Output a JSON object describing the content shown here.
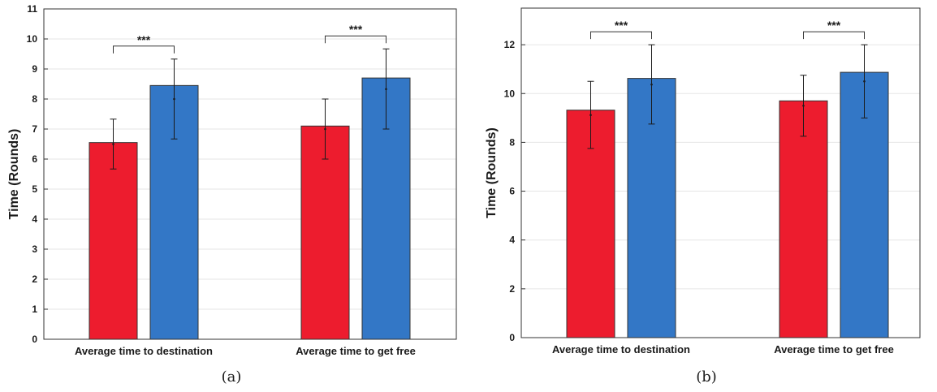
{
  "chart_data": [
    {
      "type": "bar",
      "sublabel": "(a)",
      "ylabel": "Time (Rounds)",
      "ylim": [
        0,
        11
      ],
      "yticks": [
        0,
        1,
        2,
        3,
        4,
        5,
        6,
        7,
        8,
        9,
        10,
        11
      ],
      "grid": true,
      "categories": [
        "Average time to destination",
        "Average time to get free"
      ],
      "series": [
        {
          "color": "#ED1C2E",
          "values": [
            6.55,
            7.1
          ],
          "means": [
            6.5,
            7.0
          ],
          "err_low": [
            5.67,
            6.0
          ],
          "err_high": [
            7.33,
            8.0
          ]
        },
        {
          "color": "#3377C6",
          "values": [
            8.45,
            8.7
          ],
          "means": [
            8.0,
            8.33
          ],
          "err_low": [
            6.67,
            7.0
          ],
          "err_high": [
            9.33,
            9.67
          ]
        }
      ],
      "significance": [
        "***",
        "***"
      ]
    },
    {
      "type": "bar",
      "sublabel": "(b)",
      "ylabel": "Time (Rounds)",
      "ylim": [
        0,
        13.5
      ],
      "yticks": [
        0,
        2,
        4,
        6,
        8,
        10,
        12
      ],
      "grid": true,
      "categories": [
        "Average time to destination",
        "Average time to get free"
      ],
      "series": [
        {
          "color": "#ED1C2E",
          "values": [
            9.32,
            9.7
          ],
          "means": [
            9.12,
            9.5
          ],
          "err_low": [
            7.75,
            8.25
          ],
          "err_high": [
            10.5,
            10.75
          ]
        },
        {
          "color": "#3377C6",
          "values": [
            10.62,
            10.87
          ],
          "means": [
            10.37,
            10.5
          ],
          "err_low": [
            8.75,
            9.0
          ],
          "err_high": [
            12.0,
            12.0
          ]
        }
      ],
      "significance": [
        "***",
        "***"
      ]
    }
  ]
}
